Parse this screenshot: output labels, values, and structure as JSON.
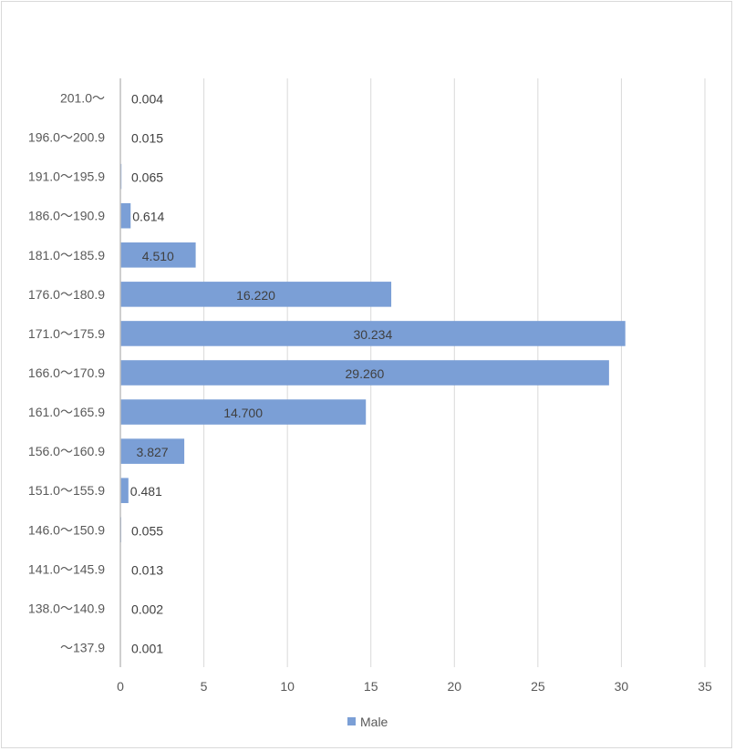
{
  "chart_data": {
    "type": "bar",
    "orientation": "horizontal",
    "categories": [
      "201.0～",
      "196.0～200.9",
      "191.0～195.9",
      "186.0～190.9",
      "181.0～185.9",
      "176.0～180.9",
      "171.0～175.9",
      "166.0～170.9",
      "161.0～165.9",
      "156.0～160.9",
      "151.0～155.9",
      "146.0～150.9",
      "141.0～145.9",
      "138.0～140.9",
      "～137.9"
    ],
    "series": [
      {
        "name": "Male",
        "values": [
          0.004,
          0.015,
          0.065,
          0.614,
          4.51,
          16.22,
          30.234,
          29.26,
          14.7,
          3.827,
          0.481,
          0.055,
          0.013,
          0.002,
          0.001
        ],
        "labels": [
          "0.004",
          "0.015",
          "0.065",
          "0.614",
          "4.510",
          "16.220",
          "30.234",
          "29.260",
          "14.700",
          "3.827",
          "0.481",
          "0.055",
          "0.013",
          "0.002",
          "0.001"
        ]
      }
    ],
    "xlim": [
      0,
      35
    ],
    "xticks": [
      "0",
      "5",
      "10",
      "15",
      "20",
      "25",
      "30",
      "35"
    ],
    "grid": "vertical",
    "legend": "bottom",
    "colors": {
      "bar": "#7b9fd6",
      "grid": "#d9d9d9",
      "axis": "#bfbfbf"
    }
  }
}
